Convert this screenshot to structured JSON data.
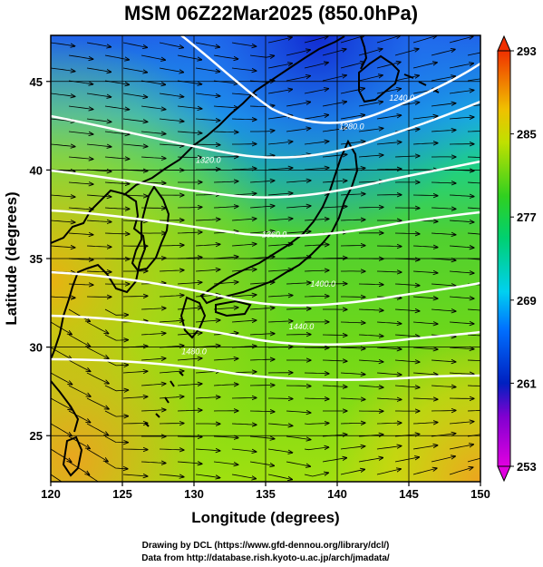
{
  "title": "MSM 06Z22Mar2025 (850.0hPa)",
  "xlabel": "Longitude (degrees)",
  "ylabel": "Latitude  (degrees)",
  "credits": [
    "Drawing by DCL (https://www.gfd-dennou.org/library/dcl/)",
    "Data from http://database.rish.kyoto-u.ac.jp/arch/jmadata/"
  ],
  "colors": {
    "coast": "#000000",
    "contour": "#ffffff",
    "stream": "#000000"
  },
  "chart_data": {
    "type": "heatmap",
    "xlim": [
      120,
      150
    ],
    "ylim": [
      22.4,
      47.6
    ],
    "x_ticks": [
      120,
      125,
      130,
      135,
      140,
      145,
      150
    ],
    "y_ticks": [
      25,
      30,
      35,
      40,
      45
    ],
    "colorbar": {
      "min": 253,
      "max": 293,
      "ticks": [
        253,
        261,
        269,
        277,
        285,
        293
      ]
    },
    "contour_labels": [
      {
        "text": "1240.0",
        "lon": 144.5,
        "lat": 43.9
      },
      {
        "text": "1280.0",
        "lon": 141.0,
        "lat": 42.3
      },
      {
        "text": "1320.0",
        "lon": 131.0,
        "lat": 40.4
      },
      {
        "text": "1360.0",
        "lon": 135.6,
        "lat": 36.2
      },
      {
        "text": "1400.0",
        "lon": 139.0,
        "lat": 33.4
      },
      {
        "text": "1440.0",
        "lon": 137.5,
        "lat": 31.0
      },
      {
        "text": "1480.0",
        "lon": 130.0,
        "lat": 29.6
      }
    ]
  }
}
